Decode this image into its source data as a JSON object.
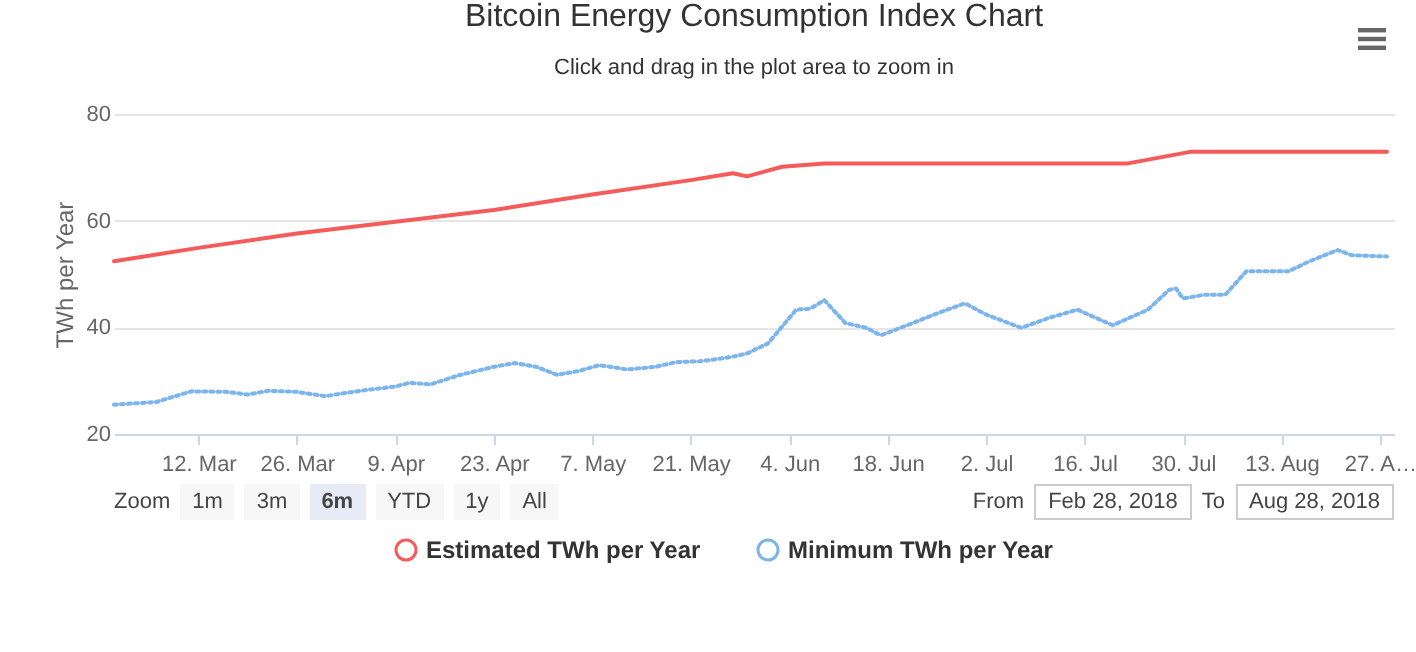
{
  "chart_data": {
    "type": "line",
    "title": "Bitcoin Energy Consumption Index Chart",
    "subtitle": "Click and drag in the plot area to zoom in",
    "ylabel": "TWh per Year",
    "xlim": [
      "2018-02-28",
      "2018-08-29"
    ],
    "xticks": [
      {
        "value": "2018-03-12",
        "label": "12. Mar"
      },
      {
        "value": "2018-03-26",
        "label": "26. Mar"
      },
      {
        "value": "2018-04-09",
        "label": "9. Apr"
      },
      {
        "value": "2018-04-23",
        "label": "23. Apr"
      },
      {
        "value": "2018-05-07",
        "label": "7. May"
      },
      {
        "value": "2018-05-21",
        "label": "21. May"
      },
      {
        "value": "2018-06-04",
        "label": "4. Jun"
      },
      {
        "value": "2018-06-18",
        "label": "18. Jun"
      },
      {
        "value": "2018-07-02",
        "label": "2. Jul"
      },
      {
        "value": "2018-07-16",
        "label": "16. Jul"
      },
      {
        "value": "2018-07-30",
        "label": "30. Jul"
      },
      {
        "value": "2018-08-13",
        "label": "13. Aug"
      },
      {
        "value": "2018-08-27",
        "label": "27. A…"
      }
    ],
    "ylim": [
      20,
      80
    ],
    "yticks": [
      20,
      40,
      60,
      80
    ],
    "grid": "y",
    "legend": "bottom",
    "series": [
      {
        "name": "Estimated TWh per Year",
        "color": "#f45b5b",
        "line_style": "solid",
        "x": [
          "2018-02-28",
          "2018-03-12",
          "2018-03-26",
          "2018-04-09",
          "2018-04-23",
          "2018-05-07",
          "2018-05-21",
          "2018-05-27",
          "2018-05-29",
          "2018-06-03",
          "2018-06-09",
          "2018-07-22",
          "2018-07-31",
          "2018-08-28"
        ],
        "values": [
          52.4,
          54.9,
          57.6,
          59.8,
          62.0,
          64.9,
          67.6,
          68.9,
          68.3,
          70.1,
          70.7,
          70.7,
          72.9,
          72.9
        ]
      },
      {
        "name": "Minimum TWh per Year",
        "color": "#7cb5ec",
        "line_style": "dotted",
        "x": [
          "2018-02-28",
          "2018-03-06",
          "2018-03-11",
          "2018-03-16",
          "2018-03-19",
          "2018-03-22",
          "2018-03-26",
          "2018-03-30",
          "2018-04-04",
          "2018-04-09",
          "2018-04-11",
          "2018-04-14",
          "2018-04-18",
          "2018-04-23",
          "2018-04-26",
          "2018-04-29",
          "2018-05-02",
          "2018-05-05",
          "2018-05-08",
          "2018-05-12",
          "2018-05-16",
          "2018-05-19",
          "2018-05-22",
          "2018-05-24",
          "2018-05-27",
          "2018-05-29",
          "2018-06-01",
          "2018-06-05",
          "2018-06-07",
          "2018-06-09",
          "2018-06-12",
          "2018-06-15",
          "2018-06-17",
          "2018-06-21",
          "2018-06-25",
          "2018-06-29",
          "2018-07-02",
          "2018-07-07",
          "2018-07-11",
          "2018-07-15",
          "2018-07-20",
          "2018-07-25",
          "2018-07-28",
          "2018-07-29",
          "2018-07-30",
          "2018-08-02",
          "2018-08-05",
          "2018-08-08",
          "2018-08-14",
          "2018-08-17",
          "2018-08-21",
          "2018-08-23",
          "2018-08-28"
        ],
        "values": [
          25.5,
          26.0,
          28.0,
          27.9,
          27.4,
          28.1,
          27.9,
          27.1,
          28.1,
          28.9,
          29.6,
          29.3,
          31.0,
          32.6,
          33.3,
          32.6,
          31.1,
          31.8,
          32.9,
          32.1,
          32.6,
          33.5,
          33.6,
          33.9,
          34.5,
          35.1,
          37.0,
          43.3,
          43.5,
          45.1,
          40.8,
          39.9,
          38.5,
          40.5,
          42.6,
          44.5,
          42.4,
          39.9,
          41.8,
          43.3,
          40.4,
          43.3,
          47.0,
          47.3,
          45.4,
          46.1,
          46.1,
          50.5,
          50.5,
          52.4,
          54.5,
          53.5,
          53.3
        ]
      }
    ],
    "annotations": [
      "Zoom",
      "1m",
      "3m",
      "6m",
      "YTD",
      "1y",
      "All",
      "From",
      "Feb 28, 2018",
      "To",
      "Aug 28, 2018"
    ]
  }
}
